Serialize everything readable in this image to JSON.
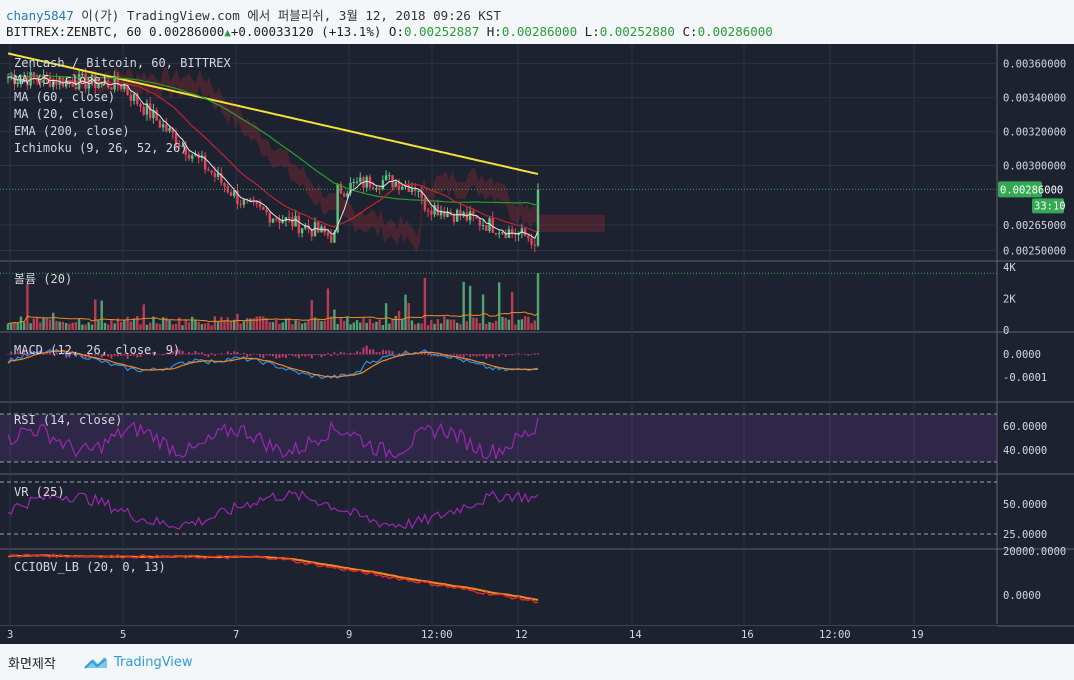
{
  "header": {
    "user": "chany5847",
    "publish_text": "이(가) TradingView.com 에서 퍼블리쉬, 3월 12, 2018 09:26 KST",
    "symbol_text": "BITTREX:ZENBTC, 60 0.00286000",
    "change_text": "+0.00033120 (+13.1%)",
    "ohlc": {
      "o_label": "O:",
      "o_value": "0.00252887",
      "h_label": "H:",
      "h_value": "0.00286000",
      "l_label": "L:",
      "l_value": "0.00252880",
      "c_label": "C:",
      "c_value": "0.00286000"
    }
  },
  "colors": {
    "background": "#1c2230",
    "grid": "#2b3344",
    "up": "#5fc383",
    "down": "#e0455a",
    "ma200": "#f1e13a",
    "ma60": "#2a9d2a",
    "ma20": "#c4232f",
    "macd": "#2f8fe0",
    "signal": "#f08a24",
    "rsi": "#9c27b0",
    "price_tag": "#35a853"
  },
  "chart_data": [
    {
      "type": "candlestick",
      "title": "Zencash / Bitcoin, 60, BITTREX",
      "legend": [
        "MA (5, close)",
        "MA (60, close)",
        "MA (20, close)",
        "EMA (200, close)",
        "Ichimoku (9, 26, 52, 26)"
      ],
      "y_ticks": [
        "0.00360000",
        "0.00340000",
        "0.00320000",
        "0.00300000",
        "0.00265000",
        "0.00250000"
      ],
      "y_range": [
        0.00245,
        0.00368
      ],
      "last_price": "0.00286000",
      "countdown": "33:10",
      "x_ticks": [
        "3",
        "5",
        "7",
        "9",
        "12:00",
        "12",
        "14",
        "16",
        "12:00",
        "19"
      ]
    },
    {
      "type": "bar",
      "title": "볼륨 (20)",
      "y_ticks": [
        "4K",
        "2K",
        "0"
      ]
    },
    {
      "type": "line",
      "title": "MACD (12, 26, close, 9)",
      "y_ticks": [
        "0.0000",
        "-0.0001"
      ]
    },
    {
      "type": "line",
      "title": "RSI (14, close)",
      "y_ticks": [
        "60.0000",
        "40.0000"
      ],
      "bands": [
        30,
        70
      ]
    },
    {
      "type": "line",
      "title": "VR (25)",
      "y_ticks": [
        "50.0000",
        "25.0000"
      ]
    },
    {
      "type": "line",
      "title": "CCIOBV_LB (20, 0, 13)",
      "y_ticks": [
        "20000.0000",
        "0.0000"
      ]
    }
  ],
  "footer": {
    "made_label": "화면제작",
    "brand": "TradingView"
  }
}
